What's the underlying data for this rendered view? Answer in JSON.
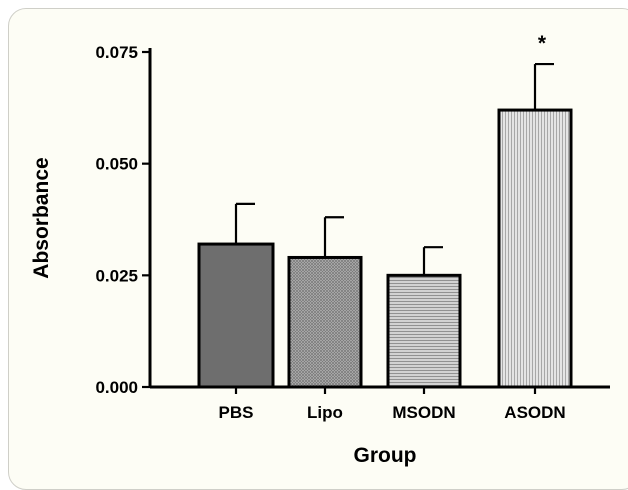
{
  "chart_data": {
    "type": "bar",
    "title": "",
    "xlabel": "Group",
    "ylabel": "Absorbance",
    "categories": [
      "PBS",
      "Lipo",
      "MSODN",
      "ASODN"
    ],
    "values": [
      0.032,
      0.029,
      0.025,
      0.062
    ],
    "errors": [
      0.009,
      0.009,
      0.0063,
      0.0103
    ],
    "annotations": [
      "",
      "",
      "",
      "*"
    ],
    "ylim": [
      0,
      0.075
    ],
    "yticks": [
      0.0,
      0.025,
      0.05,
      0.075
    ],
    "ytick_labels": [
      "0.000",
      "0.025",
      "0.050",
      "0.075"
    ],
    "grid": false,
    "bar_fills": [
      "#6e6e6e",
      "#a9a9a9",
      "#c4c4c4",
      "#dadada"
    ],
    "bar_patterns": [
      "solid",
      "crosshatch",
      "horizontal-lines",
      "vertical-lines"
    ]
  }
}
